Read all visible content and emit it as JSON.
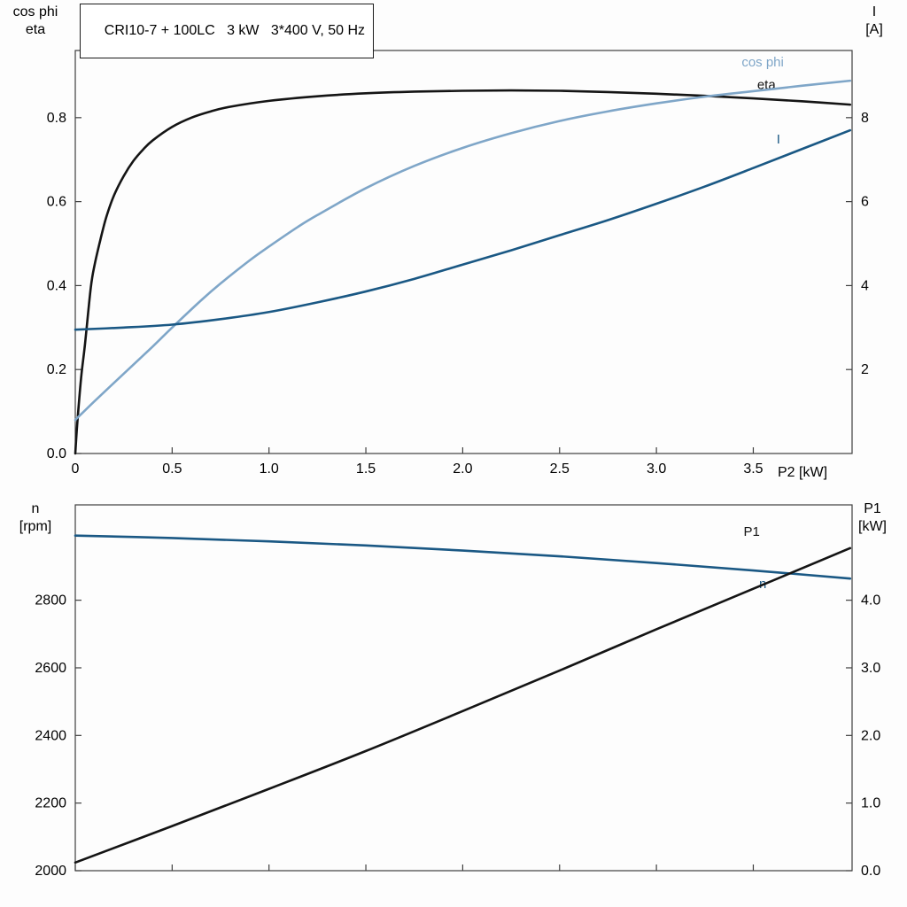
{
  "chart_data": [
    {
      "type": "line",
      "title": "CRI10-7 + 100LC   3 kW   3*400 V, 50 Hz",
      "axis_labels": {
        "left": [
          "cos phi",
          "eta"
        ],
        "right": [
          "I",
          "[A]"
        ],
        "x": "P2 [kW]"
      },
      "x_range": [
        0,
        4.01
      ],
      "x_ticks": {
        "values": [
          0,
          0.5,
          1.0,
          1.5,
          2.0,
          2.5,
          3.0,
          3.5
        ],
        "labels": [
          "0",
          "0.5",
          "1.0",
          "1.5",
          "2.0",
          "2.5",
          "3.0",
          "3.5"
        ]
      },
      "y_left": {
        "range": [
          0,
          0.96
        ],
        "tick_values": [
          0.0,
          0.2,
          0.4,
          0.6,
          0.8
        ],
        "tick_labels": [
          "0.0",
          "0.2",
          "0.4",
          "0.6",
          "0.8"
        ]
      },
      "y_right": {
        "range": [
          0,
          9.6
        ],
        "tick_values": [
          2,
          4,
          6,
          8
        ],
        "tick_labels": [
          "2",
          "4",
          "6",
          "8"
        ]
      },
      "grid": false,
      "series": [
        {
          "name": "eta",
          "axis": "left",
          "color": "#141414",
          "label": "eta",
          "label_anchor": [
            3.52,
            0.868
          ],
          "points": [
            [
              0,
              0
            ],
            [
              0.01,
              0.07
            ],
            [
              0.03,
              0.18
            ],
            [
              0.05,
              0.26
            ],
            [
              0.08,
              0.395
            ],
            [
              0.1,
              0.45
            ],
            [
              0.13,
              0.51
            ],
            [
              0.16,
              0.563
            ],
            [
              0.2,
              0.615
            ],
            [
              0.25,
              0.661
            ],
            [
              0.3,
              0.697
            ],
            [
              0.35,
              0.724
            ],
            [
              0.4,
              0.746
            ],
            [
              0.5,
              0.778
            ],
            [
              0.6,
              0.8
            ],
            [
              0.7,
              0.815
            ],
            [
              0.8,
              0.826
            ],
            [
              1,
              0.84
            ],
            [
              1.25,
              0.851
            ],
            [
              1.5,
              0.858
            ],
            [
              1.75,
              0.862
            ],
            [
              2,
              0.864
            ],
            [
              2.25,
              0.865
            ],
            [
              2.5,
              0.864
            ],
            [
              2.75,
              0.861
            ],
            [
              3,
              0.857
            ],
            [
              3.25,
              0.852
            ],
            [
              3.5,
              0.846
            ],
            [
              3.75,
              0.839
            ],
            [
              4,
              0.831
            ]
          ]
        },
        {
          "name": "cos-phi",
          "axis": "left",
          "color": "#7fa6c8",
          "label": "cos phi",
          "label_anchor": [
            3.44,
            0.922
          ],
          "points": [
            [
              0,
              0.08
            ],
            [
              0.1,
              0.125
            ],
            [
              0.25,
              0.19
            ],
            [
              0.4,
              0.255
            ],
            [
              0.5,
              0.3
            ],
            [
              0.65,
              0.365
            ],
            [
              0.75,
              0.405
            ],
            [
              0.9,
              0.46
            ],
            [
              1,
              0.493
            ],
            [
              1.15,
              0.54
            ],
            [
              1.25,
              0.568
            ],
            [
              1.5,
              0.632
            ],
            [
              1.75,
              0.685
            ],
            [
              2,
              0.728
            ],
            [
              2.25,
              0.763
            ],
            [
              2.5,
              0.792
            ],
            [
              2.75,
              0.815
            ],
            [
              3,
              0.834
            ],
            [
              3.25,
              0.85
            ],
            [
              3.5,
              0.863
            ],
            [
              3.75,
              0.876
            ],
            [
              4,
              0.888
            ]
          ]
        },
        {
          "name": "current",
          "axis": "right",
          "color": "#1a5884",
          "label": "I",
          "label_anchor": [
            3.62,
            7.38
          ],
          "points": [
            [
              0,
              2.95
            ],
            [
              0.25,
              3.0
            ],
            [
              0.5,
              3.07
            ],
            [
              0.75,
              3.2
            ],
            [
              1,
              3.37
            ],
            [
              1.25,
              3.6
            ],
            [
              1.5,
              3.86
            ],
            [
              1.75,
              4.16
            ],
            [
              2,
              4.5
            ],
            [
              2.25,
              4.84
            ],
            [
              2.5,
              5.2
            ],
            [
              2.75,
              5.56
            ],
            [
              3,
              5.95
            ],
            [
              3.25,
              6.36
            ],
            [
              3.5,
              6.8
            ],
            [
              3.75,
              7.25
            ],
            [
              4,
              7.7
            ]
          ]
        }
      ]
    },
    {
      "type": "line",
      "title": "",
      "axis_labels": {
        "left": [
          "n",
          "[rpm]"
        ],
        "right": [
          "P1",
          "[kW]"
        ],
        "x": ""
      },
      "x_range": [
        0,
        4.01
      ],
      "x_ticks": {
        "values": [
          0,
          0.5,
          1.0,
          1.5,
          2.0,
          2.5,
          3.0,
          3.5
        ],
        "labels": [
          "",
          "",
          "",
          "",
          "",
          "",
          "",
          ""
        ]
      },
      "y_left": {
        "range": [
          2000,
          3082
        ],
        "tick_values": [
          2000,
          2200,
          2400,
          2600,
          2800
        ],
        "tick_labels": [
          "2000",
          "2200",
          "2400",
          "2600",
          "2800"
        ]
      },
      "y_right": {
        "range": [
          0,
          5.41
        ],
        "tick_values": [
          0,
          1,
          2,
          3,
          4
        ],
        "tick_labels": [
          "0.0",
          "1.0",
          "2.0",
          "3.0",
          "4.0"
        ]
      },
      "grid": false,
      "series": [
        {
          "name": "speed",
          "axis": "left",
          "color": "#1a5884",
          "label": "n",
          "label_anchor": [
            3.53,
            2836
          ],
          "points": [
            [
              0,
              2991
            ],
            [
              0.5,
              2984
            ],
            [
              1,
              2974
            ],
            [
              1.5,
              2962
            ],
            [
              2,
              2947
            ],
            [
              2.5,
              2930
            ],
            [
              3,
              2910
            ],
            [
              3.5,
              2888
            ],
            [
              4,
              2864
            ]
          ]
        },
        {
          "name": "p1",
          "axis": "right",
          "color": "#141414",
          "label": "P1",
          "label_anchor": [
            3.45,
            4.95
          ],
          "points": [
            [
              0,
              0.12
            ],
            [
              0.5,
              0.66
            ],
            [
              1,
              1.21
            ],
            [
              1.5,
              1.77
            ],
            [
              2,
              2.36
            ],
            [
              2.5,
              2.96
            ],
            [
              3,
              3.57
            ],
            [
              3.5,
              4.17
            ],
            [
              4,
              4.77
            ]
          ]
        }
      ]
    }
  ]
}
